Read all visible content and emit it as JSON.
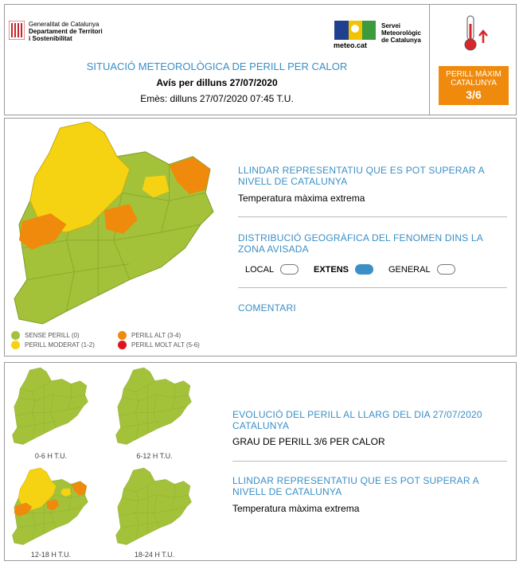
{
  "header": {
    "logo_lines": [
      "Generalitat de Catalunya",
      "Departament de Territori",
      "i Sostenibilitat"
    ],
    "meteo_logo": "meteo.cat",
    "servei_lines": [
      "Servei",
      "Meteorològic",
      "de Catalunya"
    ],
    "title": "SITUACIÓ METEOROLÒGICA DE PERILL PER CALOR",
    "subtitle": "Avís per dilluns 27/07/2020",
    "issued": "Emès: dilluns 27/07/2020 07:45 T.U.",
    "badge": {
      "lines": [
        "PERILL MÀXIM",
        "CATALUNYA"
      ],
      "level": "3/6",
      "color": "#ef8a0c"
    }
  },
  "map_panel": {
    "legend": [
      {
        "label": "SENSE PERILL (0)",
        "color": "#a3c23a"
      },
      {
        "label": "PERILL MODERAT (1-2)",
        "color": "#f5d312"
      },
      {
        "label": "PERILL ALT (3-4)",
        "color": "#ef8a0c"
      },
      {
        "label": "PERILL MOLT ALT (5-6)",
        "color": "#e0141c"
      }
    ],
    "threshold": {
      "heading": "LLINDAR REPRESENTATIU QUE ES POT SUPERAR A NIVELL DE CATALUNYA",
      "text": "Temperatura màxima extrema"
    },
    "distribution": {
      "heading": "DISTRIBUCIÓ GEOGRÀFICA DEL FENOMEN DINS LA ZONA AVISADA",
      "options": [
        {
          "label": "LOCAL",
          "selected": false
        },
        {
          "label": "EXTENS",
          "selected": true
        },
        {
          "label": "GENERAL",
          "selected": false
        }
      ]
    },
    "comment": {
      "heading": "COMENTARI"
    }
  },
  "evolution_panel": {
    "maps": [
      {
        "label": "0-6 H T.U."
      },
      {
        "label": "6-12 H T.U."
      },
      {
        "label": "12-18 H T.U."
      },
      {
        "label": "18-24 H T.U."
      }
    ],
    "evolution": {
      "heading": "EVOLUCIÓ DEL PERILL AL LLARG DEL DIA 27/07/2020 CATALUNYA",
      "text": "GRAU DE PERILL 3/6 PER CALOR"
    },
    "threshold": {
      "heading": "LLINDAR REPRESENTATIU QUE ES POT SUPERAR A NIVELL DE CATALUNYA",
      "text": "Temperatura màxima extrema"
    }
  }
}
